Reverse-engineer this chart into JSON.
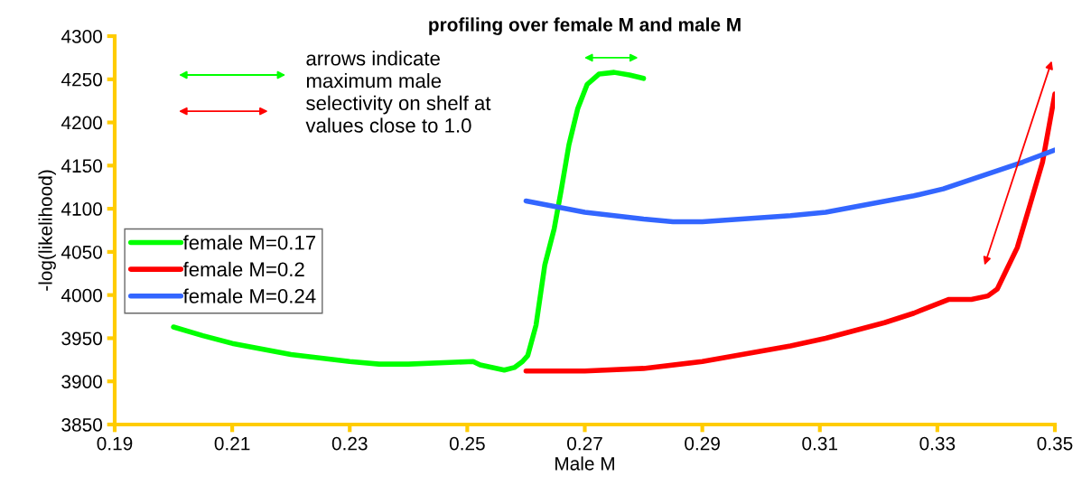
{
  "chart_data": {
    "type": "line",
    "title": "profiling over female M and male M",
    "xlabel": "Male M",
    "ylabel": "-log(likelihood)",
    "xlim": [
      0.19,
      0.35
    ],
    "xticks": [
      0.19,
      0.21,
      0.23,
      0.25,
      0.27,
      0.29,
      0.31,
      0.33,
      0.35
    ],
    "ylim": [
      3850,
      4300
    ],
    "yticks": [
      3850,
      3900,
      3950,
      4000,
      4050,
      4100,
      4150,
      4200,
      4250,
      4300
    ],
    "grid": false,
    "legend": "left",
    "marker": "none",
    "line_style": "solid",
    "annotations": [
      "arrows indicate\nmaximum male\nselectivity on shelf at\nvalues close to 1.0"
    ],
    "series": [
      {
        "name": "female M=0.17",
        "color": "#00ff00",
        "x": [
          0.2,
          0.205,
          0.21,
          0.22,
          0.23,
          0.235,
          0.24,
          0.251,
          0.2522,
          0.2563,
          0.258,
          0.2594,
          0.2603,
          0.2617,
          0.2632,
          0.2648,
          0.266,
          0.2673,
          0.2688,
          0.2704,
          0.2724,
          0.275,
          0.2776,
          0.28
        ],
        "values": [
          3963,
          3953,
          3944,
          3931,
          3923,
          3920,
          3920,
          3923,
          3919,
          3913,
          3916,
          3923,
          3930,
          3965,
          4035,
          4077,
          4122,
          4174,
          4216,
          4244,
          4256,
          4258,
          4255,
          4251
        ]
      },
      {
        "name": "female M=0.2",
        "color": "#ff0000",
        "x": [
          0.26,
          0.27,
          0.28,
          0.29,
          0.305,
          0.311,
          0.321,
          0.326,
          0.332,
          0.3358,
          0.3386,
          0.3402,
          0.3414,
          0.3436,
          0.3457,
          0.3479,
          0.35
        ],
        "values": [
          3912,
          3912,
          3915,
          3923,
          3941,
          3950,
          3968,
          3979,
          3995,
          3995,
          3999,
          4007,
          4024,
          4055,
          4103,
          4154,
          4233
        ]
      },
      {
        "name": "female M=0.24",
        "color": "#3366ff",
        "x": [
          0.26,
          0.27,
          0.28,
          0.285,
          0.29,
          0.305,
          0.311,
          0.326,
          0.331,
          0.3445,
          0.35
        ],
        "values": [
          4109,
          4096,
          4088,
          4085,
          4085,
          4092,
          4096,
          4115,
          4123,
          4154,
          4168
        ]
      }
    ]
  }
}
